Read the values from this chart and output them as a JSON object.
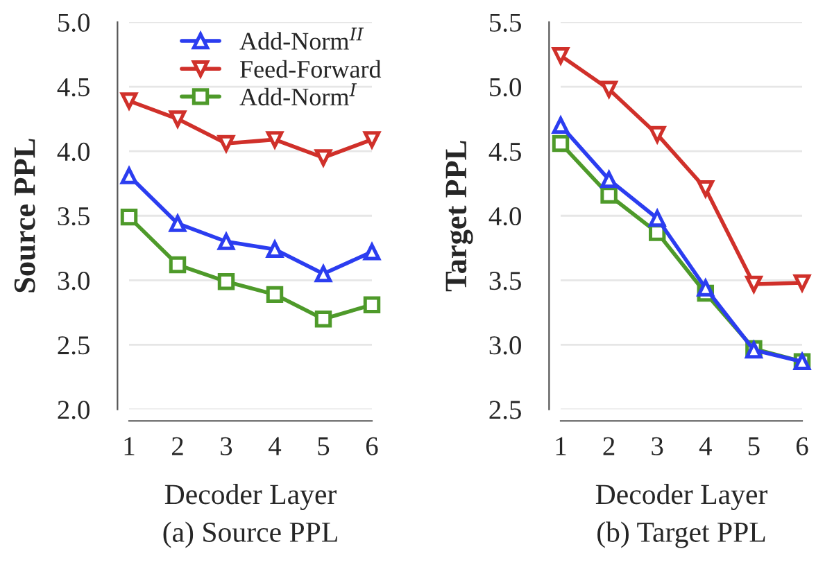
{
  "chart_data": [
    {
      "type": "line",
      "xlabel": "Decoder Layer",
      "ylabel": "Source PPL",
      "x": [
        1,
        2,
        3,
        4,
        5,
        6
      ],
      "xlim": [
        1,
        6
      ],
      "xticks": [
        1,
        2,
        3,
        4,
        5,
        6
      ],
      "ylim": [
        2.0,
        5.0
      ],
      "yticks": [
        {
          "value": 2.0,
          "label": "2.0"
        },
        {
          "value": 2.5,
          "label": "2.5"
        },
        {
          "value": 3.0,
          "label": "3.0"
        },
        {
          "value": 3.5,
          "label": "3.5"
        },
        {
          "value": 4.0,
          "label": "4.0"
        },
        {
          "value": 4.5,
          "label": "4.5"
        },
        {
          "value": 5.0,
          "label": "5.0"
        }
      ],
      "grid": "y",
      "legend": "top right",
      "annotations": [
        "(a) Source PPL"
      ],
      "series": [
        {
          "name": "Add-Norm$^{II}$",
          "color": "#2b3df0",
          "marker": "triangle",
          "values": [
            3.81,
            3.44,
            3.3,
            3.24,
            3.05,
            3.22
          ]
        },
        {
          "name": "Feed-Forward",
          "color": "#d0302a",
          "marker": "triangle-down",
          "values": [
            4.39,
            4.25,
            4.06,
            4.09,
            3.95,
            4.09
          ]
        },
        {
          "name": "Add-Norm$^{I}$",
          "color": "#4e9a2a",
          "marker": "square",
          "values": [
            3.49,
            3.12,
            2.99,
            2.89,
            2.7,
            2.81
          ]
        }
      ]
    },
    {
      "type": "line",
      "xlabel": "Decoder Layer",
      "ylabel": "Target PPL",
      "x": [
        1,
        2,
        3,
        4,
        5,
        6
      ],
      "xlim": [
        1,
        6
      ],
      "xticks": [
        1,
        2,
        3,
        4,
        5,
        6
      ],
      "ylim": [
        2.5,
        5.5
      ],
      "yticks": [
        {
          "value": 2.5,
          "label": "2.5"
        },
        {
          "value": 3.0,
          "label": "3.0"
        },
        {
          "value": 3.5,
          "label": "3.5"
        },
        {
          "value": 4.0,
          "label": "4.0"
        },
        {
          "value": 4.5,
          "label": "4.5"
        },
        {
          "value": 5.0,
          "label": "5.0"
        },
        {
          "value": 5.5,
          "label": "5.5"
        }
      ],
      "grid": "y",
      "annotations": [
        "(b) Target PPL"
      ],
      "series": [
        {
          "color": "#d0302a",
          "marker": "triangle-down",
          "values": [
            5.24,
            4.98,
            4.63,
            4.21,
            3.47,
            3.48
          ]
        },
        {
          "color": "#4e9a2a",
          "marker": "square",
          "values": [
            4.56,
            4.16,
            3.87,
            3.4,
            2.97,
            2.87
          ]
        },
        {
          "color": "#2b3df0",
          "marker": "triangle",
          "values": [
            4.7,
            4.28,
            3.98,
            3.44,
            2.96,
            2.87
          ]
        }
      ]
    }
  ]
}
